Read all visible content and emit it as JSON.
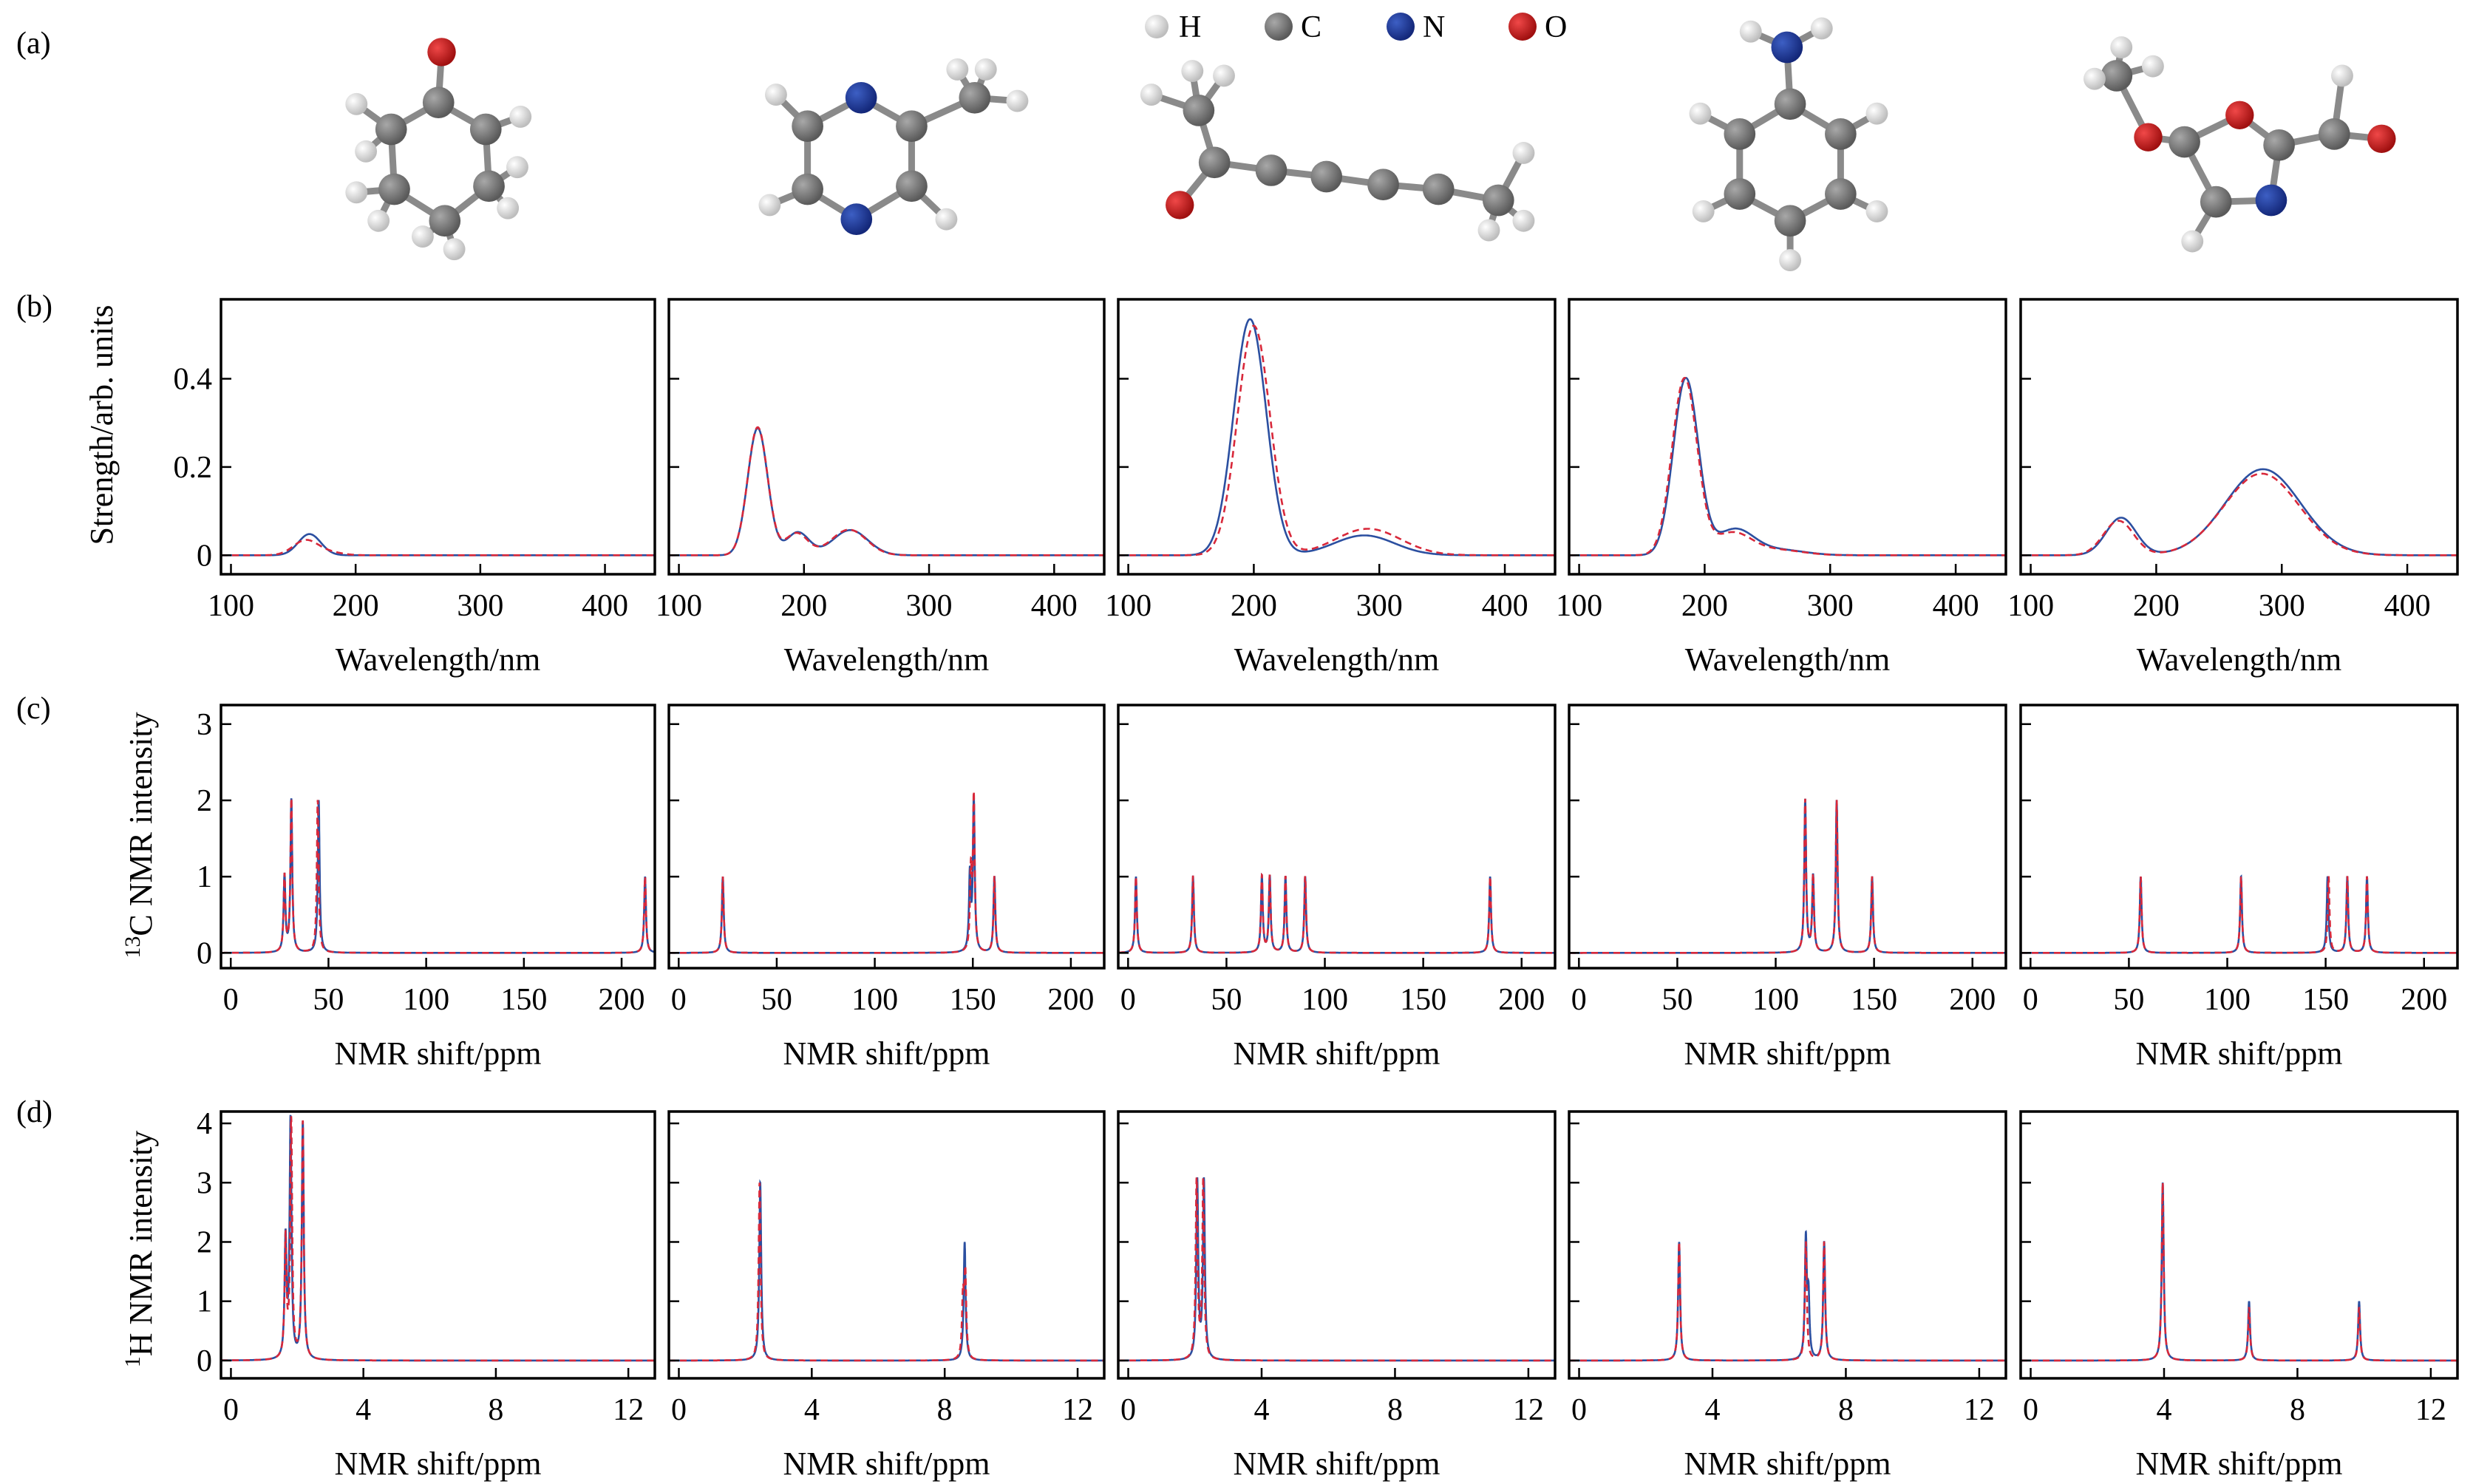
{
  "panel_labels": [
    "(a)",
    "(b)",
    "(c)",
    "(d)"
  ],
  "legend": {
    "items": [
      {
        "label": "H",
        "color": "#e6e6e6"
      },
      {
        "label": "C",
        "color": "#7f7f7f"
      },
      {
        "label": "N",
        "color": "#1f3d9c"
      },
      {
        "label": "O",
        "color": "#d42222"
      }
    ]
  },
  "colors": {
    "reference": "#2b4fa0",
    "predicted": "#d8283a"
  },
  "row_ylabels": {
    "b": "Strength/arb. units",
    "c_sup": "13",
    "c": "C NMR intensity",
    "d_sup": "1",
    "d": "H NMR intensity"
  },
  "chart_data": [
    {
      "row": "b",
      "type": "line",
      "xlabel": "Wavelength/nm",
      "xlim": [
        92,
        440
      ],
      "ylim": [
        -0.043,
        0.58
      ],
      "xticks": [
        100,
        200,
        300,
        400
      ],
      "yticks": [
        0,
        0.2,
        0.4
      ],
      "yticklabels": [
        "0",
        "0.2",
        "0.4"
      ],
      "lineshape": "gaussian",
      "series": [
        {
          "style": "solid",
          "color": "#2b4fa0",
          "peaks": [
            {
              "x": 163,
              "y": 0.048,
              "w": 9
            }
          ]
        },
        {
          "style": "dashed",
          "color": "#d8283a",
          "peaks": [
            {
              "x": 160,
              "y": 0.034,
              "w": 10
            },
            {
              "x": 180,
              "y": 0.006,
              "w": 10
            }
          ]
        }
      ]
    },
    {
      "row": "b",
      "type": "line",
      "xlabel": "Wavelength/nm",
      "xlim": [
        92,
        440
      ],
      "ylim": [
        -0.043,
        0.58
      ],
      "xticks": [
        100,
        200,
        300,
        400
      ],
      "yticks": [
        0,
        0.2,
        0.4
      ],
      "series": [
        {
          "style": "solid",
          "color": "#2b4fa0",
          "peaks": [
            {
              "x": 163,
              "y": 0.288,
              "w": 8
            },
            {
              "x": 195,
              "y": 0.052,
              "w": 9
            },
            {
              "x": 237,
              "y": 0.057,
              "w": 14
            }
          ]
        },
        {
          "style": "dashed",
          "color": "#d8283a",
          "peaks": [
            {
              "x": 163,
              "y": 0.29,
              "w": 8
            },
            {
              "x": 194,
              "y": 0.05,
              "w": 9
            },
            {
              "x": 236,
              "y": 0.058,
              "w": 14
            }
          ]
        }
      ]
    },
    {
      "row": "b",
      "type": "line",
      "xlabel": "Wavelength/nm",
      "xlim": [
        92,
        440
      ],
      "ylim": [
        -0.043,
        0.58
      ],
      "xticks": [
        100,
        200,
        300,
        400
      ],
      "yticks": [
        0,
        0.2,
        0.4
      ],
      "series": [
        {
          "style": "solid",
          "color": "#2b4fa0",
          "peaks": [
            {
              "x": 197,
              "y": 0.535,
              "w": 13
            },
            {
              "x": 288,
              "y": 0.045,
              "w": 24
            }
          ]
        },
        {
          "style": "dashed",
          "color": "#d8283a",
          "peaks": [
            {
              "x": 200,
              "y": 0.52,
              "w": 13
            },
            {
              "x": 291,
              "y": 0.06,
              "w": 26
            }
          ]
        }
      ]
    },
    {
      "row": "b",
      "type": "line",
      "xlabel": "Wavelength/nm",
      "xlim": [
        92,
        440
      ],
      "ylim": [
        -0.043,
        0.58
      ],
      "xticks": [
        100,
        200,
        300,
        400
      ],
      "yticks": [
        0,
        0.2,
        0.4
      ],
      "series": [
        {
          "style": "solid",
          "color": "#2b4fa0",
          "peaks": [
            {
              "x": 185,
              "y": 0.4,
              "w": 10
            },
            {
              "x": 224,
              "y": 0.058,
              "w": 15
            },
            {
              "x": 260,
              "y": 0.012,
              "w": 20
            }
          ]
        },
        {
          "style": "dashed",
          "color": "#d8283a",
          "peaks": [
            {
              "x": 184,
              "y": 0.4,
              "w": 10
            },
            {
              "x": 222,
              "y": 0.05,
              "w": 15
            },
            {
              "x": 258,
              "y": 0.012,
              "w": 20
            }
          ]
        }
      ]
    },
    {
      "row": "b",
      "type": "line",
      "xlabel": "Wavelength/nm",
      "xlim": [
        92,
        440
      ],
      "ylim": [
        -0.043,
        0.58
      ],
      "xticks": [
        100,
        200,
        300,
        400
      ],
      "yticks": [
        0,
        0.2,
        0.4
      ],
      "series": [
        {
          "style": "solid",
          "color": "#2b4fa0",
          "peaks": [
            {
              "x": 172,
              "y": 0.085,
              "w": 12
            },
            {
              "x": 285,
              "y": 0.195,
              "w": 30
            }
          ]
        },
        {
          "style": "dashed",
          "color": "#d8283a",
          "peaks": [
            {
              "x": 170,
              "y": 0.078,
              "w": 12
            },
            {
              "x": 284,
              "y": 0.185,
              "w": 30
            }
          ]
        }
      ]
    },
    {
      "row": "c",
      "type": "line",
      "xlabel": "NMR shift/ppm",
      "xlim": [
        -5,
        217
      ],
      "ylim": [
        -0.2,
        3.25
      ],
      "xticks": [
        0,
        50,
        100,
        150,
        200
      ],
      "yticks": [
        0,
        1,
        2,
        3
      ],
      "yticklabels": [
        "0",
        "1",
        "2",
        "3"
      ],
      "lineshape": "lorentzian",
      "series": [
        {
          "style": "solid",
          "color": "#2b4fa0",
          "peaks": [
            {
              "x": 27.5,
              "y": 1
            },
            {
              "x": 31,
              "y": 2
            },
            {
              "x": 45,
              "y": 2
            },
            {
              "x": 212,
              "y": 1
            }
          ]
        },
        {
          "style": "dashed",
          "color": "#d8283a",
          "peaks": [
            {
              "x": 27.5,
              "y": 1
            },
            {
              "x": 31,
              "y": 2
            },
            {
              "x": 44.5,
              "y": 2
            },
            {
              "x": 212,
              "y": 1
            }
          ]
        }
      ]
    },
    {
      "row": "c",
      "type": "line",
      "xlabel": "NMR shift/ppm",
      "xlim": [
        -5,
        217
      ],
      "ylim": [
        -0.2,
        3.25
      ],
      "xticks": [
        0,
        50,
        100,
        150,
        200
      ],
      "yticks": [
        0,
        1,
        2,
        3
      ],
      "series": [
        {
          "style": "solid",
          "color": "#2b4fa0",
          "peaks": [
            {
              "x": 22.5,
              "y": 1
            },
            {
              "x": 148.5,
              "y": 1
            },
            {
              "x": 150.5,
              "y": 2
            },
            {
              "x": 161,
              "y": 1
            }
          ]
        },
        {
          "style": "dashed",
          "color": "#d8283a",
          "peaks": [
            {
              "x": 22.5,
              "y": 1
            },
            {
              "x": 149,
              "y": 1
            },
            {
              "x": 150.5,
              "y": 2
            },
            {
              "x": 161,
              "y": 1
            }
          ]
        }
      ]
    },
    {
      "row": "c",
      "type": "line",
      "xlabel": "NMR shift/ppm",
      "xlim": [
        -5,
        217
      ],
      "ylim": [
        -0.2,
        3.25
      ],
      "xticks": [
        0,
        50,
        100,
        150,
        200
      ],
      "yticks": [
        0,
        1,
        2,
        3
      ],
      "series": [
        {
          "style": "solid",
          "color": "#2b4fa0",
          "peaks": [
            {
              "x": 4,
              "y": 1
            },
            {
              "x": 33,
              "y": 1
            },
            {
              "x": 68,
              "y": 1
            },
            {
              "x": 72,
              "y": 1
            },
            {
              "x": 80,
              "y": 1
            },
            {
              "x": 90,
              "y": 1
            },
            {
              "x": 184,
              "y": 1
            }
          ]
        },
        {
          "style": "dashed",
          "color": "#d8283a",
          "peaks": [
            {
              "x": 4,
              "y": 1
            },
            {
              "x": 33,
              "y": 1
            },
            {
              "x": 68,
              "y": 1
            },
            {
              "x": 72,
              "y": 1
            },
            {
              "x": 80,
              "y": 1
            },
            {
              "x": 90,
              "y": 1
            },
            {
              "x": 184,
              "y": 1
            }
          ]
        }
      ]
    },
    {
      "row": "c",
      "type": "line",
      "xlabel": "NMR shift/ppm",
      "xlim": [
        -5,
        217
      ],
      "ylim": [
        -0.2,
        3.25
      ],
      "xticks": [
        0,
        50,
        100,
        150,
        200
      ],
      "yticks": [
        0,
        1,
        2,
        3
      ],
      "series": [
        {
          "style": "solid",
          "color": "#2b4fa0",
          "peaks": [
            {
              "x": 115,
              "y": 2
            },
            {
              "x": 119,
              "y": 1
            },
            {
              "x": 131,
              "y": 2
            },
            {
              "x": 149,
              "y": 1
            }
          ]
        },
        {
          "style": "dashed",
          "color": "#d8283a",
          "peaks": [
            {
              "x": 115,
              "y": 2
            },
            {
              "x": 119,
              "y": 1
            },
            {
              "x": 131,
              "y": 2
            },
            {
              "x": 149,
              "y": 1
            }
          ]
        }
      ]
    },
    {
      "row": "c",
      "type": "line",
      "xlabel": "NMR shift/ppm",
      "xlim": [
        -5,
        217
      ],
      "ylim": [
        -0.2,
        3.25
      ],
      "xticks": [
        0,
        50,
        100,
        150,
        200
      ],
      "yticks": [
        0,
        1,
        2,
        3
      ],
      "series": [
        {
          "style": "solid",
          "color": "#2b4fa0",
          "peaks": [
            {
              "x": 56,
              "y": 1
            },
            {
              "x": 107,
              "y": 1
            },
            {
              "x": 151,
              "y": 1
            },
            {
              "x": 161,
              "y": 1
            },
            {
              "x": 171,
              "y": 1
            }
          ]
        },
        {
          "style": "dashed",
          "color": "#d8283a",
          "peaks": [
            {
              "x": 56,
              "y": 1
            },
            {
              "x": 107,
              "y": 1
            },
            {
              "x": 151.5,
              "y": 1
            },
            {
              "x": 161,
              "y": 1
            },
            {
              "x": 171,
              "y": 1
            }
          ]
        }
      ]
    },
    {
      "row": "d",
      "type": "line",
      "xlabel": "NMR shift/ppm",
      "xlim": [
        -0.3,
        12.8
      ],
      "ylim": [
        -0.3,
        4.2
      ],
      "xticks": [
        0,
        4,
        8,
        12
      ],
      "yticks": [
        0,
        1,
        2,
        3,
        4
      ],
      "yticklabels": [
        "0",
        "1",
        "2",
        "3",
        "4"
      ],
      "lineshape": "lorentzian",
      "series": [
        {
          "style": "solid",
          "color": "#2b4fa0",
          "peaks": [
            {
              "x": 1.65,
              "y": 2
            },
            {
              "x": 1.8,
              "y": 4
            },
            {
              "x": 2.17,
              "y": 4
            }
          ]
        },
        {
          "style": "dashed",
          "color": "#d8283a",
          "peaks": [
            {
              "x": 1.65,
              "y": 2
            },
            {
              "x": 1.82,
              "y": 4
            },
            {
              "x": 2.17,
              "y": 4
            }
          ]
        }
      ]
    },
    {
      "row": "d",
      "type": "line",
      "xlabel": "NMR shift/ppm",
      "xlim": [
        -0.3,
        12.8
      ],
      "ylim": [
        -0.3,
        4.2
      ],
      "xticks": [
        0,
        4,
        8,
        12
      ],
      "yticks": [
        0,
        1,
        2,
        3,
        4
      ],
      "series": [
        {
          "style": "solid",
          "color": "#2b4fa0",
          "peaks": [
            {
              "x": 2.45,
              "y": 3
            },
            {
              "x": 8.6,
              "y": 2
            }
          ]
        },
        {
          "style": "dashed",
          "color": "#d8283a",
          "peaks": [
            {
              "x": 2.43,
              "y": 3
            },
            {
              "x": 8.55,
              "y": 1
            },
            {
              "x": 8.62,
              "y": 1.4
            }
          ]
        }
      ]
    },
    {
      "row": "d",
      "type": "line",
      "xlabel": "NMR shift/ppm",
      "xlim": [
        -0.3,
        12.8
      ],
      "ylim": [
        -0.3,
        4.2
      ],
      "xticks": [
        0,
        4,
        8,
        12
      ],
      "yticks": [
        0,
        1,
        2,
        3,
        4
      ],
      "series": [
        {
          "style": "solid",
          "color": "#2b4fa0",
          "peaks": [
            {
              "x": 2.07,
              "y": 3
            },
            {
              "x": 2.27,
              "y": 3
            }
          ]
        },
        {
          "style": "dashed",
          "color": "#d8283a",
          "peaks": [
            {
              "x": 2.05,
              "y": 3
            },
            {
              "x": 2.25,
              "y": 3
            }
          ]
        }
      ]
    },
    {
      "row": "d",
      "type": "line",
      "xlabel": "NMR shift/ppm",
      "xlim": [
        -0.3,
        12.8
      ],
      "ylim": [
        -0.3,
        4.2
      ],
      "xticks": [
        0,
        4,
        8,
        12
      ],
      "yticks": [
        0,
        1,
        2,
        3,
        4
      ],
      "series": [
        {
          "style": "solid",
          "color": "#2b4fa0",
          "peaks": [
            {
              "x": 3.0,
              "y": 2
            },
            {
              "x": 6.8,
              "y": 2
            },
            {
              "x": 6.88,
              "y": 1
            },
            {
              "x": 7.35,
              "y": 2
            }
          ]
        },
        {
          "style": "dashed",
          "color": "#d8283a",
          "peaks": [
            {
              "x": 3.0,
              "y": 2
            },
            {
              "x": 6.8,
              "y": 2
            },
            {
              "x": 7.35,
              "y": 2
            }
          ]
        }
      ]
    },
    {
      "row": "d",
      "type": "line",
      "xlabel": "NMR shift/ppm",
      "xlim": [
        -0.3,
        12.8
      ],
      "ylim": [
        -0.3,
        4.2
      ],
      "xticks": [
        0,
        4,
        8,
        12
      ],
      "yticks": [
        0,
        1,
        2,
        3,
        4
      ],
      "series": [
        {
          "style": "solid",
          "color": "#2b4fa0",
          "peaks": [
            {
              "x": 3.96,
              "y": 3
            },
            {
              "x": 6.55,
              "y": 1
            },
            {
              "x": 9.85,
              "y": 1
            }
          ]
        },
        {
          "style": "dashed",
          "color": "#d8283a",
          "peaks": [
            {
              "x": 3.96,
              "y": 3
            },
            {
              "x": 6.55,
              "y": 0.9
            },
            {
              "x": 9.85,
              "y": 0.9
            }
          ]
        }
      ]
    }
  ]
}
